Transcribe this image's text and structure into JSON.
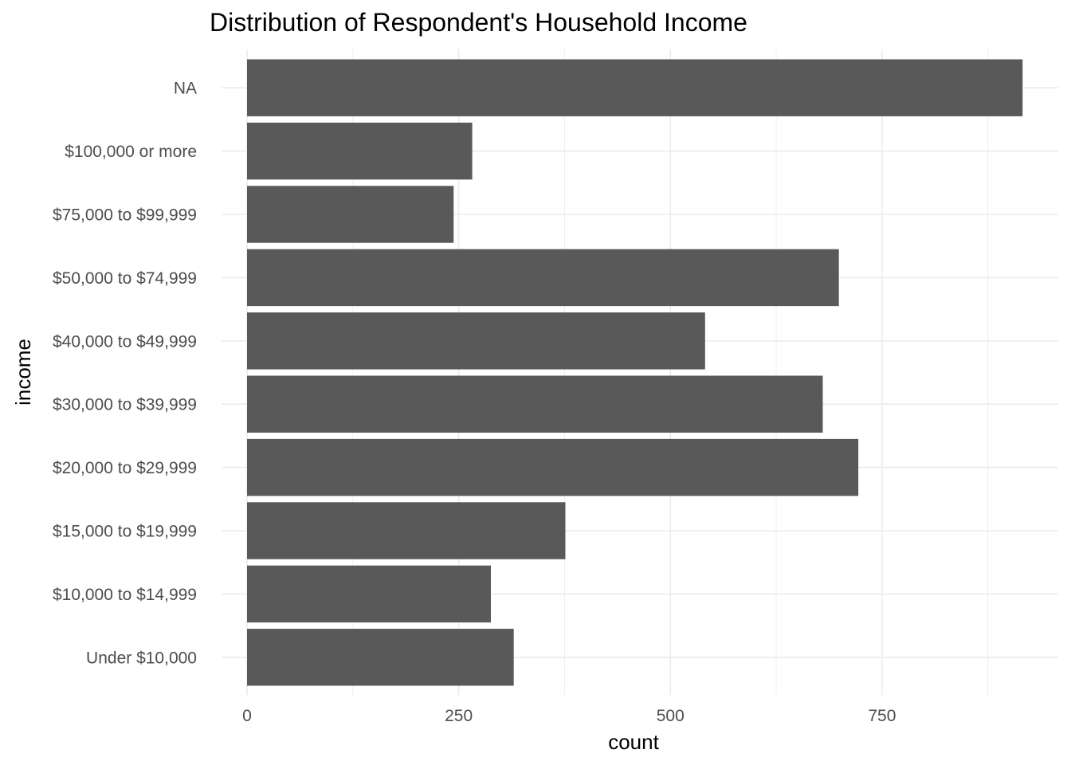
{
  "chart_data": {
    "type": "bar",
    "orientation": "horizontal",
    "title": "Distribution of Respondent's Household Income",
    "xlabel": "count",
    "ylabel": "income",
    "categories": [
      "Under $10,000",
      "$10,000 to $14,999",
      "$15,000 to $19,999",
      "$20,000 to $29,999",
      "$30,000 to $39,999",
      "$40,000 to $49,999",
      "$50,000 to $74,999",
      "$75,000 to $99,999",
      "$100,000 or more",
      "NA"
    ],
    "values": [
      315,
      288,
      376,
      722,
      680,
      541,
      699,
      244,
      266,
      916
    ],
    "xlim": [
      0,
      968
    ],
    "xticks": [
      0,
      250,
      500,
      750
    ],
    "xtick_labels": [
      "0",
      "250",
      "500",
      "750"
    ],
    "grid": true,
    "legend": "none",
    "bar_color": "#595959",
    "grid_color": "#ebebeb"
  }
}
